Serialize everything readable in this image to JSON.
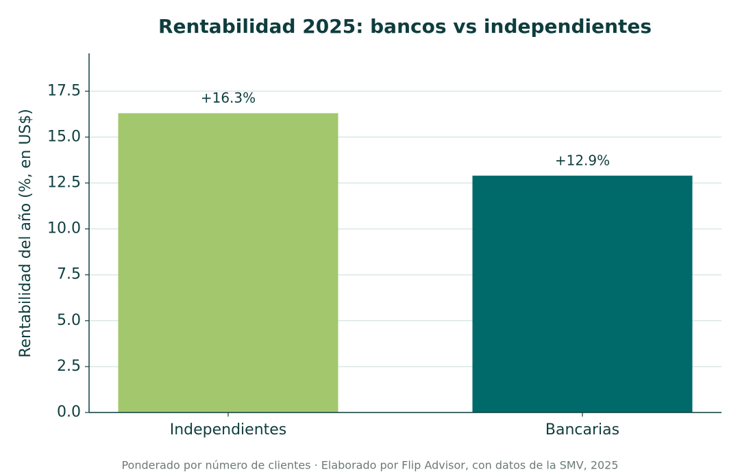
{
  "chart_data": {
    "type": "bar",
    "title": "Rentabilidad 2025: bancos vs independientes",
    "y_label": "Rentabilidad del año (%, en US$)",
    "note": "Ponderado por número de clientes · Elaborado por Flip Advisor, con datos de la SMV, 2025",
    "categories": [
      "Independientes",
      "Bancarias"
    ],
    "values": [
      16.3,
      12.9
    ],
    "value_labels": [
      "+16.3%",
      "+12.9%"
    ],
    "colors": [
      "#a3c76d",
      "#006a6b"
    ],
    "ylim": [
      0,
      19.56
    ],
    "yticks": [
      {
        "value": 0,
        "label": "0.0"
      },
      2.5,
      {
        "value": 5,
        "label": "5.0"
      },
      7.5,
      {
        "value": 10,
        "label": "10.0"
      },
      12.5,
      {
        "value": 15,
        "label": "15.0"
      },
      17.5
    ],
    "grid": true
  }
}
